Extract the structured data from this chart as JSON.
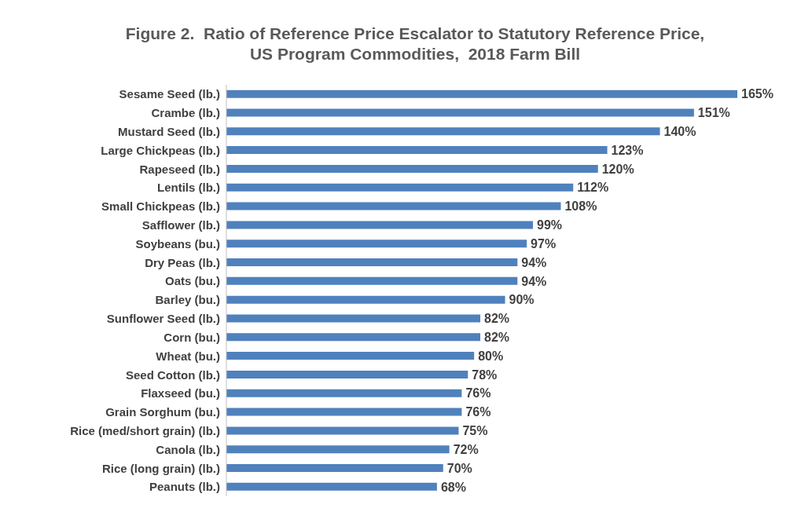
{
  "chart_data": {
    "type": "bar",
    "orientation": "horizontal",
    "title": "Figure 2.  Ratio of Reference Price Escalator to Statutory Reference Price, US Program Commodities,  2018 Farm Bill",
    "categories": [
      "Sesame Seed (lb.)",
      "Crambe (lb.)",
      "Mustard Seed (lb.)",
      "Large Chickpeas (lb.)",
      "Rapeseed (lb.)",
      "Lentils  (lb.)",
      "Small Chickpeas (lb.)",
      "Safflower (lb.)",
      "Soybeans (bu.)",
      "Dry Peas (lb.)",
      "Oats (bu.)",
      "Barley (bu.)",
      "Sunflower Seed (lb.)",
      "Corn (bu.)",
      "Wheat (bu.)",
      "Seed Cotton (lb.)",
      "Flaxseed (bu.)",
      "Grain Sorghum (bu.)",
      "Rice (med/short grain)  (lb.)",
      "Canola (lb.)",
      "Rice (long grain) (lb.)",
      "Peanuts (lb.)"
    ],
    "values": [
      165,
      151,
      140,
      123,
      120,
      112,
      108,
      99,
      97,
      94,
      94,
      90,
      82,
      82,
      80,
      78,
      76,
      76,
      75,
      72,
      70,
      68
    ],
    "value_labels": [
      "165%",
      "151%",
      "140%",
      "123%",
      "120%",
      "112%",
      "108%",
      "99%",
      "97%",
      "94%",
      "94%",
      "90%",
      "82%",
      "82%",
      "80%",
      "78%",
      "76%",
      "76%",
      "75%",
      "72%",
      "70%",
      "68%"
    ],
    "color": "#4f81bd",
    "grid": false,
    "legend": false
  }
}
